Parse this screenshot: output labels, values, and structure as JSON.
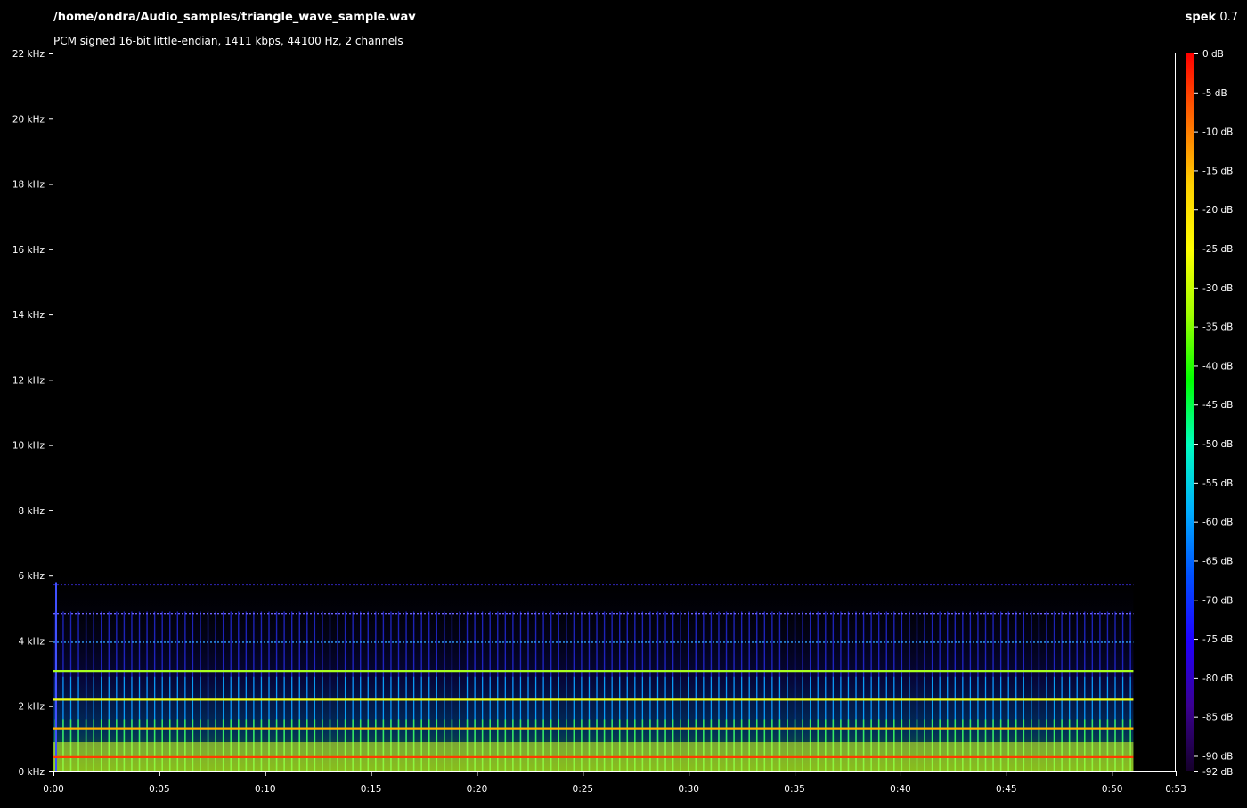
{
  "header": {
    "file_path": "/home/ondra/Audio_samples/triangle_wave_sample.wav",
    "file_info": "PCM signed 16-bit little-endian, 1411 kbps, 44100 Hz, 2 channels",
    "app_name": "spek",
    "app_version": "0.7"
  },
  "spectrogram": {
    "frequency_axis": {
      "unit": "kHz",
      "range": [
        0,
        22
      ],
      "ticks": [
        "22 kHz",
        "20 kHz",
        "18 kHz",
        "16 kHz",
        "14 kHz",
        "12 kHz",
        "10 kHz",
        "8 kHz",
        "6 kHz",
        "4 kHz",
        "2 kHz",
        "0 kHz"
      ]
    },
    "time_axis": {
      "unit": "seconds",
      "range": [
        0,
        53
      ],
      "ticks": [
        "0:00",
        "0:05",
        "0:10",
        "0:15",
        "0:20",
        "0:25",
        "0:30",
        "0:35",
        "0:40",
        "0:45",
        "0:50",
        "0:53"
      ]
    },
    "signal_end_seconds": 51,
    "harmonics_khz": [
      {
        "freq": 0.44,
        "color": "#ff3b00"
      },
      {
        "freq": 1.32,
        "color": "#ffb000"
      },
      {
        "freq": 2.2,
        "color": "#f0ff10"
      },
      {
        "freq": 3.08,
        "color": "#a8ff20"
      },
      {
        "freq": 3.96,
        "color": "#30a0ff"
      },
      {
        "freq": 4.84,
        "color": "#6a60ff"
      },
      {
        "freq": 5.72,
        "color": "#2a20a0"
      }
    ]
  },
  "color_scale": {
    "unit": "dB",
    "range": [
      -92,
      0
    ],
    "ticks": [
      "0 dB",
      "-5 dB",
      "-10 dB",
      "-15 dB",
      "-20 dB",
      "-25 dB",
      "-30 dB",
      "-35 dB",
      "-40 dB",
      "-45 dB",
      "-50 dB",
      "-55 dB",
      "-60 dB",
      "-65 dB",
      "-70 dB",
      "-75 dB",
      "-80 dB",
      "-85 dB",
      "-90 dB",
      "-92 dB"
    ],
    "colors": [
      "#ff0000",
      "#ff6a00",
      "#ffd000",
      "#ffff00",
      "#a0ff00",
      "#00ff00",
      "#00ffc0",
      "#00b0ff",
      "#0050ff",
      "#2000ff",
      "#3a0090",
      "#15002a"
    ]
  }
}
